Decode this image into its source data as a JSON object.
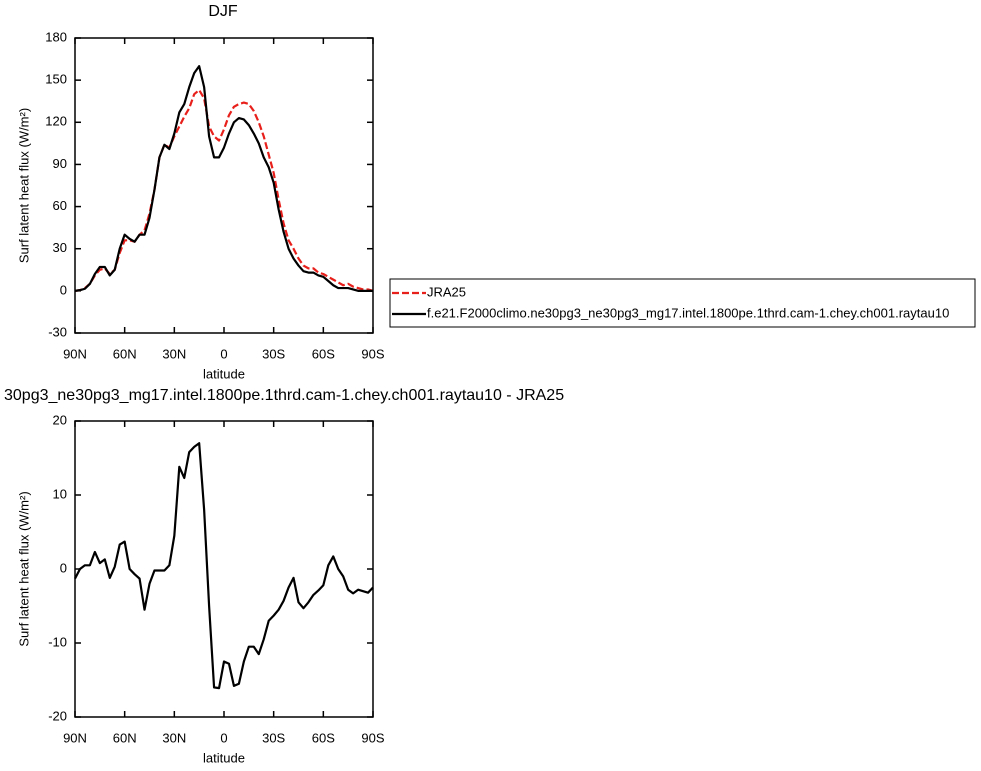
{
  "chart_data": [
    {
      "type": "line",
      "title": "DJF",
      "xlabel": "latitude",
      "ylabel": "Surf latent heat flux (W/m²)",
      "x": [
        90,
        87,
        84,
        81,
        78,
        75,
        72,
        69,
        66,
        63,
        60,
        57,
        54,
        51,
        48,
        45,
        42,
        39,
        36,
        33,
        30,
        27,
        24,
        21,
        18,
        15,
        12,
        9,
        6,
        3,
        0,
        -3,
        -6,
        -9,
        -12,
        -15,
        -18,
        -21,
        -24,
        -27,
        -30,
        -33,
        -36,
        -39,
        -42,
        -45,
        -48,
        -51,
        -54,
        -57,
        -60,
        -63,
        -66,
        -69,
        -72,
        -75,
        -78,
        -81,
        -84,
        -87,
        -90
      ],
      "xlim": [
        90,
        -90
      ],
      "xticks": [
        {
          "value": 90,
          "label": "90N"
        },
        {
          "value": 60,
          "label": "60N"
        },
        {
          "value": 30,
          "label": "30N"
        },
        0,
        {
          "value": -30,
          "label": "30S"
        },
        {
          "value": -60,
          "label": "60S"
        },
        {
          "value": -90,
          "label": "90S"
        }
      ],
      "ylim": [
        -30,
        180
      ],
      "yticks": [
        -30,
        0,
        30,
        60,
        90,
        120,
        150,
        180
      ],
      "legend": "right",
      "series": [
        {
          "name": "JRA25",
          "color": "#e8201c",
          "linestyle": "dashed",
          "values": [
            0,
            0.5,
            2,
            5,
            11,
            15,
            16,
            12,
            15,
            27,
            36,
            36,
            35,
            40,
            43,
            55,
            72,
            95,
            104,
            102,
            110,
            117,
            124,
            130,
            140,
            143,
            137,
            117,
            110,
            107,
            115,
            125,
            131,
            133,
            134,
            133,
            128,
            120,
            110,
            97,
            84,
            65,
            48,
            36,
            30,
            23,
            18,
            16,
            16,
            13,
            12,
            10,
            8,
            6,
            4,
            5,
            3,
            2,
            1,
            1,
            0
          ]
        },
        {
          "name": "f.e21.F2000climo.ne30pg3_ne30pg3_mg17.intel.1800pe.1thrd.cam-1.chey.ch001.raytau10",
          "color": "#000000",
          "linestyle": "solid",
          "values": [
            0,
            0.5,
            1.5,
            5,
            12,
            17,
            17,
            11,
            15,
            30,
            40,
            37,
            35,
            40,
            40,
            52,
            72,
            95,
            104,
            101,
            112,
            127,
            133,
            145,
            155,
            160,
            145,
            110,
            95,
            95,
            102,
            112,
            120,
            123,
            122,
            118,
            112,
            105,
            95,
            88,
            77,
            58,
            42,
            30,
            23,
            18,
            14,
            13,
            13,
            11,
            10,
            7,
            4,
            2,
            2,
            2,
            1,
            0,
            0,
            0,
            0
          ]
        }
      ]
    },
    {
      "type": "line",
      "title": "30pg3_ne30pg3_mg17.intel.1800pe.1thrd.cam-1.chey.ch001.raytau10 - JRA25",
      "xlabel": "latitude",
      "ylabel": "Surf latent heat flux (W/m²)",
      "x": [
        90,
        87,
        84,
        81,
        78,
        75,
        72,
        69,
        66,
        63,
        60,
        57,
        54,
        51,
        48,
        45,
        42,
        39,
        36,
        33,
        30,
        27,
        24,
        21,
        18,
        15,
        12,
        9,
        6,
        3,
        0,
        -3,
        -6,
        -9,
        -12,
        -15,
        -18,
        -21,
        -24,
        -27,
        -30,
        -33,
        -36,
        -39,
        -42,
        -45,
        -48,
        -51,
        -54,
        -57,
        -60,
        -63,
        -66,
        -69,
        -72,
        -75,
        -78,
        -81,
        -84,
        -87,
        -90
      ],
      "xlim": [
        90,
        -90
      ],
      "xticks": [
        {
          "value": 90,
          "label": "90N"
        },
        {
          "value": 60,
          "label": "60N"
        },
        {
          "value": 30,
          "label": "30N"
        },
        0,
        {
          "value": -30,
          "label": "30S"
        },
        {
          "value": -60,
          "label": "60S"
        },
        {
          "value": -90,
          "label": "90S"
        }
      ],
      "ylim": [
        -20,
        20
      ],
      "yticks": [
        -20,
        -10,
        0,
        10,
        20
      ],
      "series": [
        {
          "color": "#000000",
          "linestyle": "solid",
          "values": [
            -1.3,
            0,
            0.5,
            0.5,
            2.3,
            0.8,
            1.3,
            -1.2,
            0.3,
            3.3,
            3.7,
            0,
            -0.7,
            -1.3,
            -5.5,
            -2,
            -0.2,
            -0.2,
            -0.2,
            0.5,
            4.5,
            13.8,
            12.3,
            15.8,
            16.5,
            17,
            8,
            -5,
            -16,
            -16.1,
            -12.5,
            -12.8,
            -15.8,
            -15.5,
            -12.5,
            -10.5,
            -10.5,
            -11.5,
            -9.5,
            -7,
            -6.3,
            -5.5,
            -4.3,
            -2.5,
            -1.2,
            -4.5,
            -5.3,
            -4.5,
            -3.5,
            -2.9,
            -2.2,
            0.5,
            1.7,
            0,
            -1,
            -2.8,
            -3.3,
            -2.8,
            -3,
            -3.2,
            -2.5
          ]
        }
      ]
    }
  ]
}
